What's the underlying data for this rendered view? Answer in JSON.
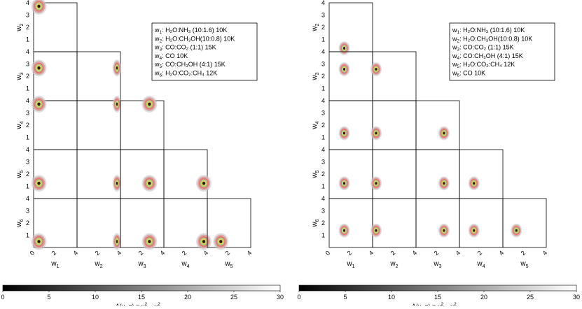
{
  "chart_data": [
    {
      "type": "corner-contour",
      "panel": "left",
      "parameters": [
        "w1",
        "w2",
        "w3",
        "w4",
        "w5",
        "w6"
      ],
      "axis_range": [
        0,
        4
      ],
      "ticks": [
        "0",
        "1",
        "2",
        "3",
        "4"
      ],
      "x_labels": [
        "w",
        "w",
        "w",
        "w",
        "w"
      ],
      "x_subs": [
        "1",
        "2",
        "3",
        "4",
        "5"
      ],
      "y_labels": [
        "w",
        "w",
        "w",
        "w",
        "w"
      ],
      "y_subs": [
        "2",
        "3",
        "4",
        "5",
        "6"
      ],
      "contour_color_sequence": [
        "#c7c7c7",
        "#d9a8a8",
        "#e4786e",
        "#a7cf8b",
        "#f1dd43",
        "#2a1a1a"
      ],
      "best_fit": {
        "w1": 0.3,
        "w2": 4.25,
        "w3": 2.6,
        "w4": 4.25,
        "w5": 1.1,
        "w6": 0.3
      },
      "legend": [
        {
          "pre": "w",
          "sub": "1",
          "text": ": H₂O:NH₃ (10:1.6) 10K"
        },
        {
          "pre": "w",
          "sub": "2",
          "text": ": H₂O:CH₃OH(10:0.8) 10K"
        },
        {
          "pre": "w",
          "sub": "3",
          "text": ": CO:CO₂ (1:1) 15K"
        },
        {
          "pre": "w",
          "sub": "4",
          "text": ": CO 10K"
        },
        {
          "pre": "w",
          "sub": "5",
          "text": ": CO:CH₃OH (4:1) 15K"
        },
        {
          "pre": "w",
          "sub": "6",
          "text": ": H₂O:CO₂:CH₄ 12K"
        }
      ],
      "legend_position": "top-right"
    },
    {
      "type": "corner-contour",
      "panel": "right",
      "parameters": [
        "w1",
        "w2",
        "w3",
        "w4",
        "w5",
        "w6"
      ],
      "axis_range": [
        0,
        4
      ],
      "ticks": [
        "0",
        "1",
        "2",
        "3",
        "4"
      ],
      "x_labels": [
        "w",
        "w",
        "w",
        "w",
        "w"
      ],
      "x_subs": [
        "1",
        "2",
        "3",
        "4",
        "5"
      ],
      "y_labels": [
        "w",
        "w",
        "w",
        "w",
        "w"
      ],
      "y_subs": [
        "2",
        "3",
        "4",
        "5",
        "6"
      ],
      "contour_color_sequence": [
        "#c7c7c7",
        "#d9a8a8",
        "#e4786e",
        "#a7cf8b",
        "#f1dd43",
        "#2a1a1a"
      ],
      "best_fit": {
        "w1": 1.25,
        "w2": 0.05,
        "w3": 2.5,
        "w4": 1.2,
        "w5": 1.1,
        "w6": 1.25
      },
      "legend": [
        {
          "pre": "w",
          "sub": "1",
          "text": ": H₂O:NH₃ (10:1.6) 10K"
        },
        {
          "pre": "w",
          "sub": "2",
          "text": ": H₂O:CH₃OH(10:0.8) 10K"
        },
        {
          "pre": "w",
          "sub": "3",
          "text": ": CO:CO₂ (1:1) 15K"
        },
        {
          "pre": "w",
          "sub": "4",
          "text": ": CO:CH₃OH (4:1) 15K"
        },
        {
          "pre": "w",
          "sub": "5",
          "text": ": H₂O:CO₂:CH₄ 12K"
        },
        {
          "pre": "w",
          "sub": "6",
          "text": ": CO 10K"
        }
      ],
      "legend_position": "top-right"
    }
  ],
  "colorbars": [
    {
      "range": [
        0,
        30
      ],
      "ticks": [
        "0",
        "5",
        "10",
        "15",
        "20",
        "25",
        "30"
      ],
      "label": {
        "main": "Δ(ν, α) = χ",
        "sup1": "2",
        "mid": " − χ",
        "sup2": "2",
        "sub2": "min"
      }
    },
    {
      "range": [
        0,
        30
      ],
      "ticks": [
        "0",
        "5",
        "10",
        "15",
        "20",
        "25",
        "30"
      ],
      "label": {
        "main": "Δ(ν, α) = χ",
        "sup1": "2",
        "mid": " − χ",
        "sup2": "2",
        "sub2": "min"
      }
    }
  ]
}
